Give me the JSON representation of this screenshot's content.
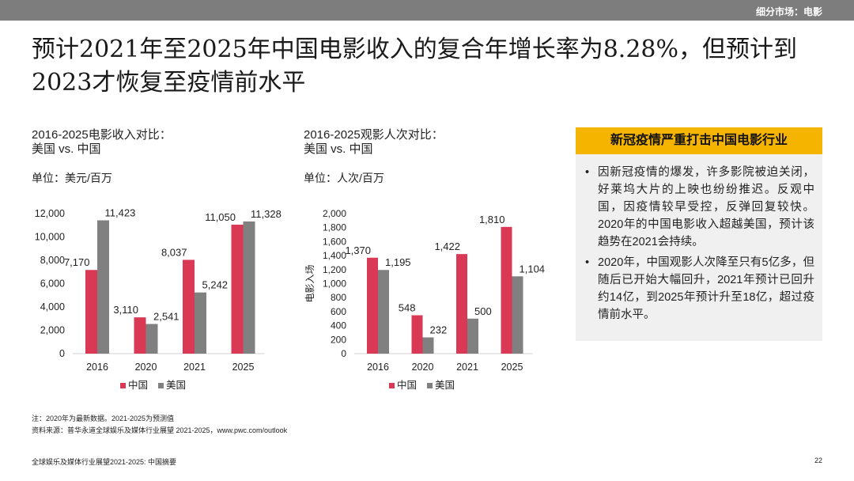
{
  "header": {
    "section": "细分市场：电影"
  },
  "title": "预计2021年至2025年中国电影收入的复合年增长率为8.28%，但预计到2023才恢复至疫情前水平",
  "colors": {
    "china": "#d93954",
    "usa": "#808080",
    "accent": "#f5b400"
  },
  "chart_data": [
    {
      "type": "bar",
      "title_line1": "2016-2025电影收入对比：",
      "title_line2": "美国 vs. 中国",
      "unit": "单位：美元/百万",
      "ylabel": "",
      "categories": [
        "2016",
        "2020",
        "2021",
        "2025"
      ],
      "ylim": [
        0,
        12000
      ],
      "yticks": [
        0,
        2000,
        4000,
        6000,
        8000,
        10000,
        12000
      ],
      "ytick_labels": [
        "0",
        "2,000",
        "4,000",
        "6,000",
        "8,000",
        "10,000",
        "12,000"
      ],
      "series": [
        {
          "name": "中国",
          "values": [
            7170,
            3110,
            8037,
            11050
          ],
          "labels": [
            "7,170",
            "3,110",
            "8,037",
            "11,050"
          ]
        },
        {
          "name": "美国",
          "values": [
            11423,
            2541,
            5242,
            11328
          ],
          "labels": [
            "11,423",
            "2,541",
            "5,242",
            "11,328"
          ]
        }
      ],
      "legend": "bottom"
    },
    {
      "type": "bar",
      "title_line1": "2016-2025观影人次对比：",
      "title_line2": "美国 vs. 中国",
      "unit": "单位：人次/百万",
      "ylabel": "电影入场",
      "categories": [
        "2016",
        "2020",
        "2021",
        "2025"
      ],
      "ylim": [
        0,
        2000
      ],
      "yticks": [
        0,
        200,
        400,
        600,
        800,
        1000,
        1200,
        1400,
        1600,
        1800,
        2000
      ],
      "ytick_labels": [
        "0",
        "200",
        "400",
        "600",
        "800",
        "1,000",
        "1,200",
        "1,400",
        "1,600",
        "1,800",
        "2,000"
      ],
      "series": [
        {
          "name": "中国",
          "values": [
            1370,
            548,
            1422,
            1810
          ],
          "labels": [
            "1,370",
            "548",
            "1,422",
            "1,810"
          ]
        },
        {
          "name": "美国",
          "values": [
            1195,
            232,
            500,
            1104
          ],
          "labels": [
            "1,195",
            "232",
            "500",
            "1,104"
          ]
        }
      ],
      "legend": "bottom"
    }
  ],
  "sidebar": {
    "heading": "新冠疫情严重打击中国电影行业",
    "bullets": [
      "因新冠疫情的爆发，许多影院被迫关闭，好莱坞大片的上映也纷纷推迟。反观中国，因疫情较早受控，反弹回复较快。2020年的中国电影收入超越美国，预计该趋势在2021会持续。",
      "2020年，中国观影人次降至只有5亿多，但随后已开始大幅回升，2021年预计已回升约14亿，到2025年预计升至18亿，超过疫情前水平。"
    ]
  },
  "notes": {
    "note": "注：2020年为最新数据。2021-2025为预测值",
    "source": "资料来源：普华永道全球娱乐及媒体行业展望 2021-2025，www.pwc.com/outlook"
  },
  "footer": {
    "left": "全球娱乐及媒体行业展望2021-2025: 中国摘要",
    "page": "22"
  }
}
